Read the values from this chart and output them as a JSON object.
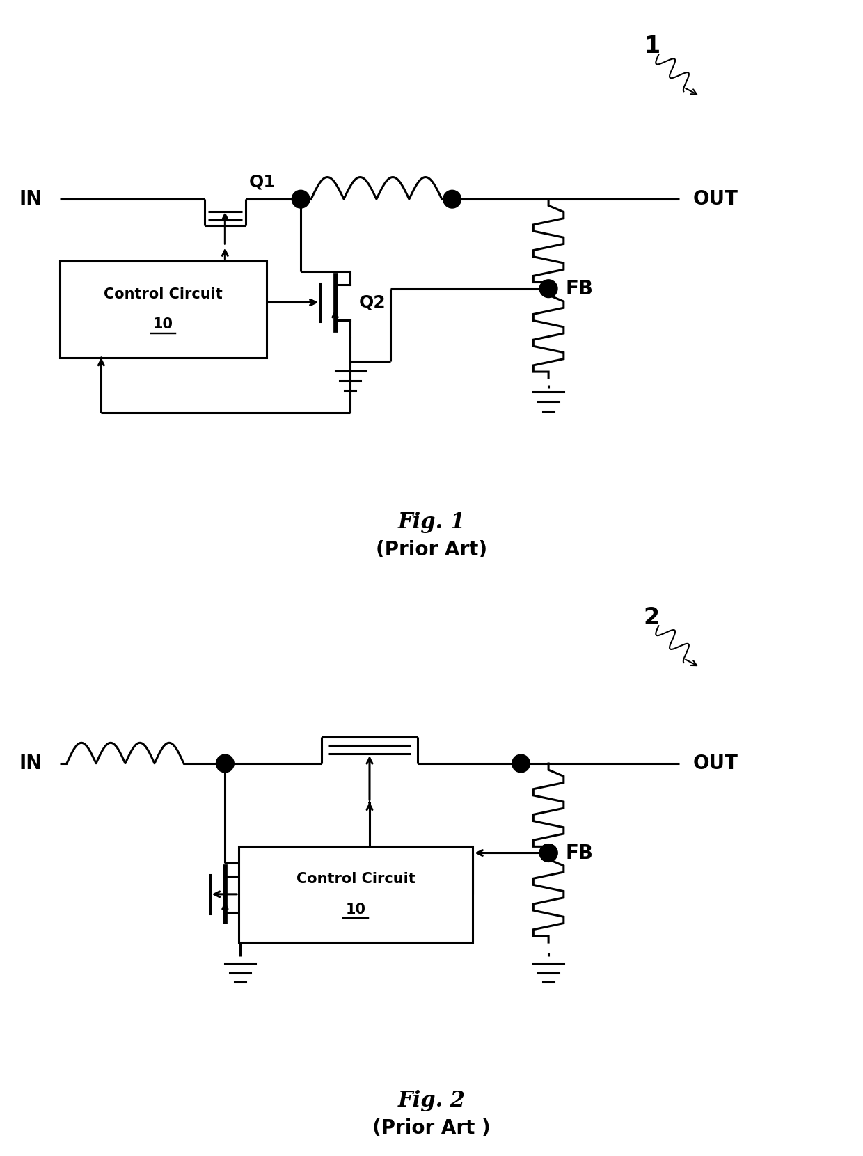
{
  "fig_width": 12.4,
  "fig_height": 16.61,
  "dpi": 100,
  "bg_color": "#ffffff",
  "line_color": "#000000",
  "lw": 2.2,
  "dot_r": 0.13,
  "fig1_caption": "Fig. 1",
  "fig1_sub": "(Prior Art)",
  "fig2_caption": "Fig. 2",
  "fig2_sub": "(Prior Art )"
}
